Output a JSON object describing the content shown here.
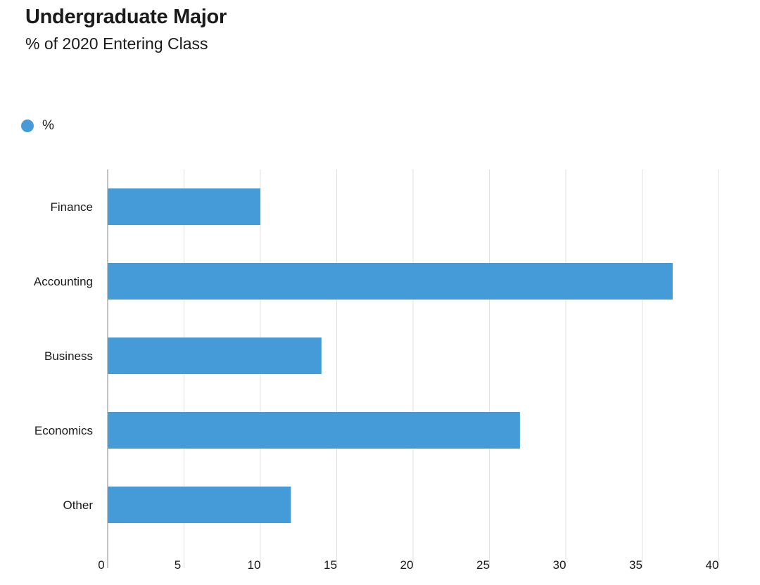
{
  "colors": {
    "bar": "#459bd8",
    "grid": "#e2e2e2",
    "axis": "#9a9a9a",
    "text": "#1a1a1a"
  },
  "legend": {
    "entries": [
      {
        "label": "%",
        "color": "#459bd8"
      }
    ],
    "placement": "top-left"
  },
  "chart_data": {
    "type": "bar",
    "orientation": "horizontal",
    "title": "Undergraduate Major",
    "subtitle": "% of 2020 Entering Class",
    "xlabel": "",
    "ylabel": "",
    "categories": [
      "Finance",
      "Accounting",
      "Business",
      "Economics",
      "Other"
    ],
    "series": [
      {
        "name": "%",
        "values": [
          10,
          37,
          14,
          27,
          12
        ]
      }
    ],
    "xlim": [
      0,
      40
    ],
    "xticks": [
      0,
      5,
      10,
      15,
      20,
      25,
      30,
      35,
      40
    ],
    "grid": true,
    "legend_position": "top-left"
  }
}
